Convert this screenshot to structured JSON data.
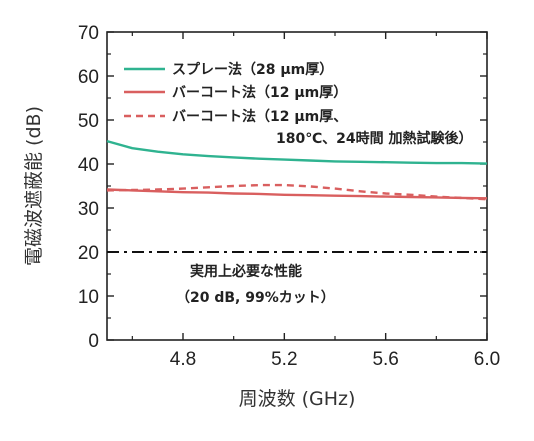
{
  "chart_data": {
    "type": "line",
    "xlabel": "周波数 (GHz)",
    "ylabel": "電磁波遮蔽能 (dB)",
    "xlim": [
      4.5,
      6.0
    ],
    "ylim": [
      0,
      70
    ],
    "xticks": [
      4.8,
      5.2,
      5.6,
      6.0
    ],
    "xtick_labels": [
      "4.8",
      "5.2",
      "5.6",
      "6.0"
    ],
    "yticks": [
      0,
      10,
      20,
      30,
      40,
      50,
      60,
      70
    ],
    "ytick_labels": [
      "0",
      "10",
      "20",
      "30",
      "40",
      "50",
      "60",
      "70"
    ],
    "legend_position": "top",
    "series": [
      {
        "name_lines": [
          "スプレー法（28 μm厚）"
        ],
        "color": "#2fb390",
        "style": "solid",
        "x": [
          4.5,
          4.6,
          4.7,
          4.8,
          4.9,
          5.0,
          5.1,
          5.2,
          5.3,
          5.4,
          5.5,
          5.6,
          5.7,
          5.8,
          5.9,
          6.0
        ],
        "y": [
          45.2,
          43.6,
          42.8,
          42.2,
          41.8,
          41.5,
          41.2,
          41.0,
          40.8,
          40.6,
          40.5,
          40.4,
          40.3,
          40.2,
          40.2,
          40.1
        ]
      },
      {
        "name_lines": [
          "バーコート法（12 μm厚）"
        ],
        "color": "#d95f5f",
        "style": "solid",
        "x": [
          4.5,
          4.6,
          4.7,
          4.8,
          4.9,
          5.0,
          5.1,
          5.2,
          5.3,
          5.4,
          5.5,
          5.6,
          5.7,
          5.8,
          5.9,
          6.0
        ],
        "y": [
          34.2,
          34.0,
          33.8,
          33.6,
          33.5,
          33.3,
          33.2,
          33.0,
          32.9,
          32.8,
          32.7,
          32.6,
          32.5,
          32.4,
          32.3,
          32.2
        ]
      },
      {
        "name_lines": [
          "バーコート法（12 μm厚、",
          "180℃、24時間 加熱試験後）"
        ],
        "color": "#d95f5f",
        "style": "dashed",
        "x": [
          4.5,
          4.6,
          4.7,
          4.8,
          4.9,
          5.0,
          5.1,
          5.2,
          5.3,
          5.4,
          5.5,
          5.6,
          5.7,
          5.8,
          5.9,
          6.0
        ],
        "y": [
          34.0,
          34.1,
          34.2,
          34.4,
          34.7,
          35.0,
          35.2,
          35.2,
          34.9,
          34.4,
          33.8,
          33.3,
          33.0,
          32.6,
          32.3,
          32.0
        ]
      }
    ],
    "reference_line": {
      "y": 20,
      "color": "#111111",
      "style": "dashdot"
    },
    "annotation": {
      "lines": [
        "実用上必要な性能",
        "（20 dB, 99%カット）"
      ]
    }
  }
}
